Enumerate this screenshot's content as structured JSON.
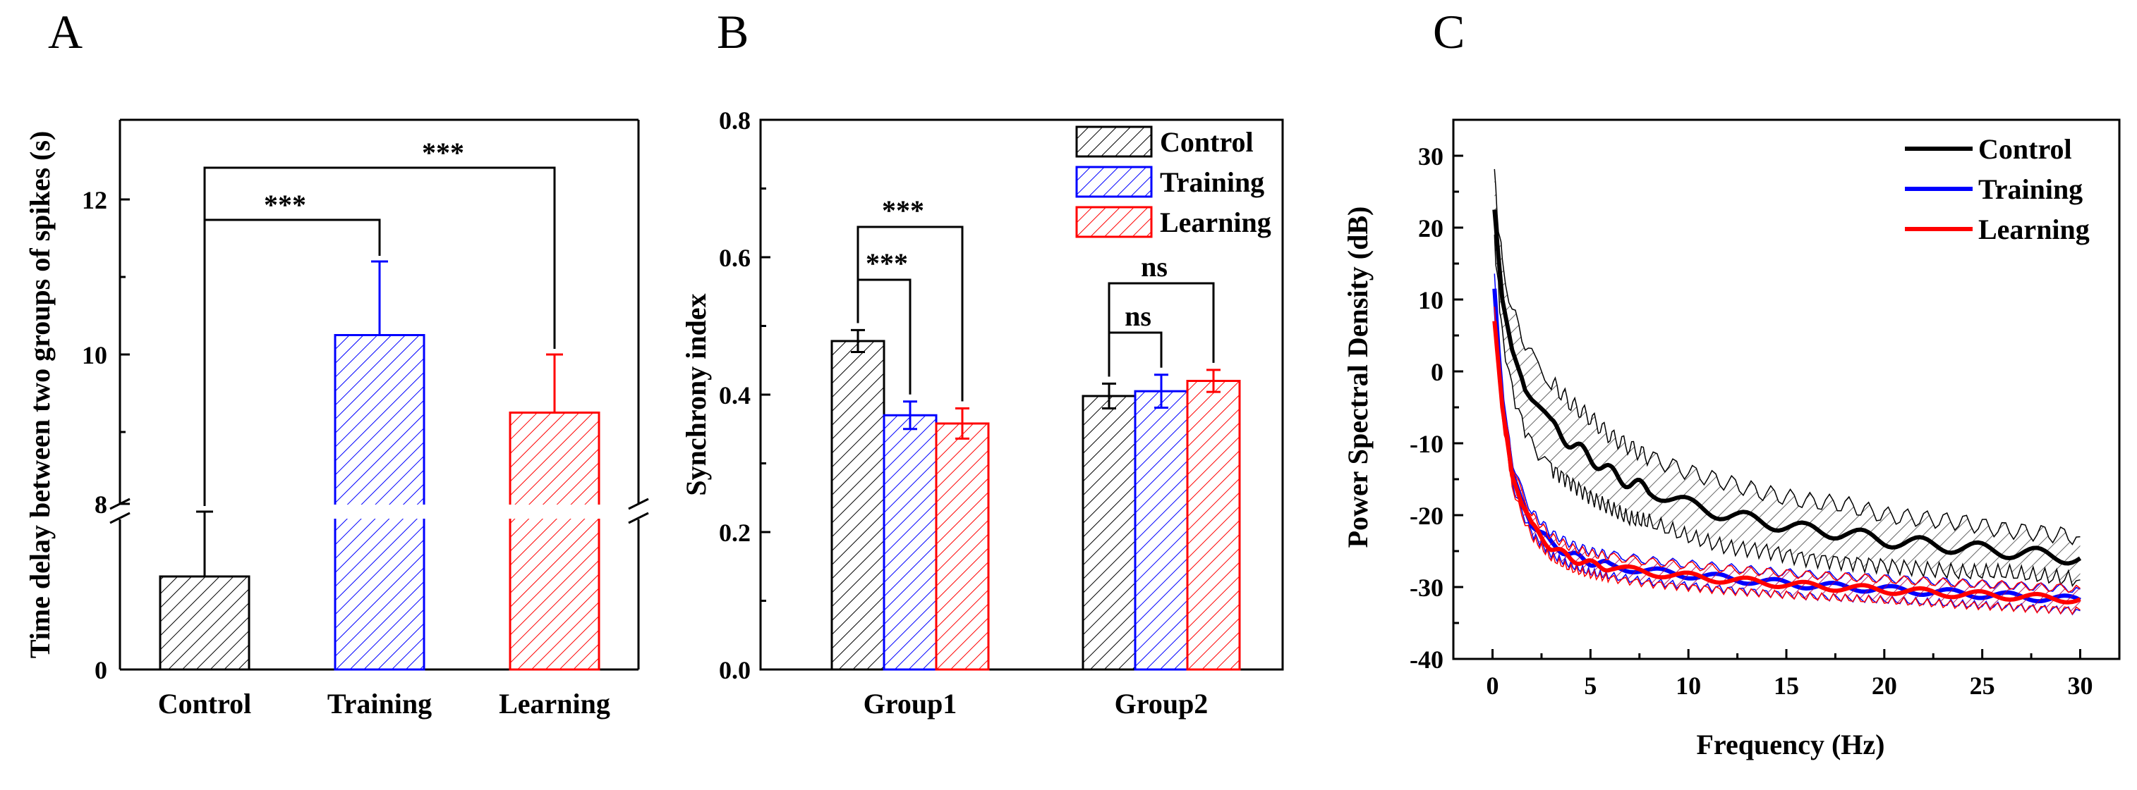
{
  "chart_data": [
    {
      "panel": "A",
      "type": "bar",
      "ylabel": "Time delay between two groups of spikes (s)",
      "categories": [
        "Control",
        "Training",
        "Learning"
      ],
      "values": [
        1.5,
        10.25,
        9.25
      ],
      "errors": [
        1.05,
        0.95,
        0.75
      ],
      "colors": [
        "#000000",
        "#0000ff",
        "#ff0000"
      ],
      "axis_break": {
        "from": 2.5,
        "to": 8
      },
      "yticks_low": [
        {
          "v": 0,
          "label": "0"
        }
      ],
      "yticks_high": [
        {
          "v": 8,
          "label": "8"
        },
        {
          "v": 10,
          "label": "10"
        },
        {
          "v": 12,
          "label": "12"
        }
      ],
      "ylim": [
        0,
        13
      ],
      "significance": [
        {
          "from": 0,
          "to": 1,
          "label": "***"
        },
        {
          "from": 0,
          "to": 2,
          "label": "***"
        }
      ]
    },
    {
      "panel": "B",
      "type": "bar",
      "ylabel": "Synchrony index",
      "categories": [
        "Group1",
        "Group2"
      ],
      "series": [
        {
          "name": "Control",
          "color": "#000000",
          "values": [
            0.478,
            0.398
          ],
          "errors": [
            0.016,
            0.018
          ]
        },
        {
          "name": "Training",
          "color": "#0000ff",
          "values": [
            0.37,
            0.405
          ],
          "errors": [
            0.02,
            0.024
          ]
        },
        {
          "name": "Learning",
          "color": "#ff0000",
          "values": [
            0.358,
            0.42
          ],
          "errors": [
            0.022,
            0.016
          ]
        }
      ],
      "ylim": [
        0,
        0.8
      ],
      "yticks": [
        "0.0",
        "0.2",
        "0.4",
        "0.6",
        "0.8"
      ],
      "significance": [
        {
          "group": 0,
          "from": 0,
          "to": 1,
          "label": "***"
        },
        {
          "group": 0,
          "from": 0,
          "to": 2,
          "label": "***"
        },
        {
          "group": 1,
          "from": 0,
          "to": 1,
          "label": "ns"
        },
        {
          "group": 1,
          "from": 0,
          "to": 2,
          "label": "ns"
        }
      ]
    },
    {
      "panel": "C",
      "type": "line",
      "xlabel": "Frequency (Hz)",
      "ylabel": "Power Spectral Density (dB)",
      "xlim": [
        -2,
        32
      ],
      "ylim": [
        -40,
        35
      ],
      "xticks": [
        0,
        5,
        10,
        15,
        20,
        25,
        30
      ],
      "yticks": [
        -40,
        -30,
        -20,
        -10,
        0,
        10,
        20,
        30
      ],
      "series": [
        {
          "name": "Control",
          "color": "#000000",
          "x": [
            0.1,
            0.3,
            0.5,
            1,
            1.5,
            2,
            3,
            4,
            5,
            6,
            7,
            8,
            10,
            12,
            14,
            16,
            18,
            20,
            22,
            24,
            26,
            28,
            30
          ],
          "y": [
            22.5,
            16,
            10,
            3,
            -1,
            -4,
            -7.5,
            -10,
            -12,
            -14,
            -15.5,
            -16.5,
            -18.5,
            -20,
            -21,
            -22,
            -22.5,
            -23.5,
            -24,
            -24.5,
            -25,
            -25.5,
            -26
          ],
          "band": [
            4.5,
            4.5,
            5,
            5.5,
            6,
            6,
            6,
            5.5,
            5.5,
            5,
            5,
            4.5,
            4.5,
            4.5,
            4,
            4,
            4,
            3.5,
            3.5,
            3.5,
            3,
            3,
            3
          ]
        },
        {
          "name": "Training",
          "color": "#0000ff",
          "x": [
            0.1,
            0.3,
            0.5,
            0.8,
            1,
            1.5,
            2,
            3,
            4,
            5,
            6,
            8,
            10,
            12,
            14,
            16,
            18,
            20,
            22,
            24,
            26,
            28,
            30
          ],
          "y": [
            11.5,
            3,
            -4,
            -10,
            -14,
            -18,
            -21,
            -24,
            -25.5,
            -26.5,
            -27,
            -27.8,
            -28.3,
            -28.8,
            -29.3,
            -29.7,
            -30,
            -30.3,
            -30.6,
            -30.9,
            -31.2,
            -31.5,
            -31.8
          ],
          "band": [
            1.5,
            1.5,
            1.5,
            1.5,
            1.5,
            1.5,
            1.5,
            1.5,
            1.5,
            1.5,
            1.5,
            1.5,
            1.5,
            1.5,
            1.5,
            1.5,
            1.5,
            1.5,
            1.5,
            1.5,
            1.5,
            1.5,
            1.5
          ]
        },
        {
          "name": "Learning",
          "color": "#ff0000",
          "x": [
            0.1,
            0.3,
            0.5,
            0.8,
            1,
            1.5,
            2,
            3,
            4,
            5,
            6,
            8,
            10,
            12,
            14,
            16,
            18,
            20,
            22,
            24,
            26,
            28,
            30
          ],
          "y": [
            7,
            1,
            -5,
            -10.5,
            -14.5,
            -18.5,
            -21.5,
            -24.5,
            -26,
            -26.8,
            -27.3,
            -28,
            -28.5,
            -29,
            -29.4,
            -29.8,
            -30.1,
            -30.4,
            -30.7,
            -31,
            -31.2,
            -31.5,
            -31.7
          ],
          "band": [
            1.5,
            1.5,
            1.5,
            1.5,
            1.5,
            1.5,
            1.5,
            1.5,
            1.5,
            1.5,
            1.5,
            1.5,
            1.5,
            1.5,
            1.5,
            1.5,
            1.5,
            1.5,
            1.5,
            1.5,
            1.5,
            1.5,
            1.5
          ]
        }
      ]
    }
  ]
}
